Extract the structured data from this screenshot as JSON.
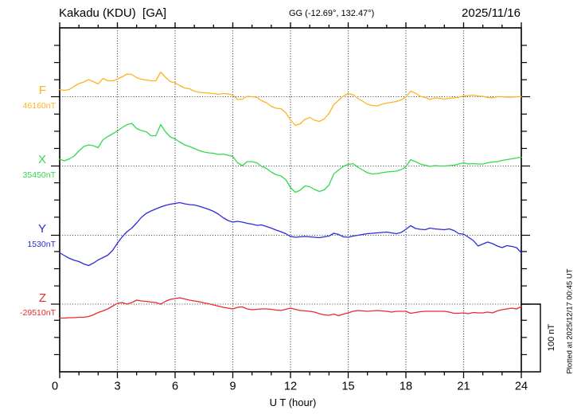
{
  "header": {
    "station_title": "Kakadu (KDU)  [GA]",
    "coordinates": "GG (-12.69°, 132.47°)",
    "date": "2025/11/16"
  },
  "annotations": {
    "scale_bar_label": "100 nT",
    "plotted_at": "Plotted at 2025/12/17 00:45 UT"
  },
  "chart_data": {
    "type": "line",
    "title": "Kakadu (KDU) [GA] magnetogram 2025/11/16",
    "xlabel": "U T (hour)",
    "x_range_hours": [
      0,
      24
    ],
    "x_ticks": [
      0,
      3,
      6,
      9,
      12,
      15,
      18,
      21,
      24
    ],
    "sample_interval_hours": 0.25,
    "scale_bar_nT": 100,
    "grid": {
      "vertical_dotted_every_hours": 3,
      "horizontal_dotted_at": "each series baseline",
      "minor_tick_nT": 25,
      "minor_tick_hours": 1
    },
    "series": [
      {
        "name": "F",
        "baseline_label": "46160nT",
        "baseline_nT": 46160,
        "color": "#FFB321",
        "offsets_nT": [
          10.6,
          9.4,
          10.6,
          15.3,
          19.4,
          21.8,
          25.3,
          22.4,
          18.8,
          27.1,
          23.5,
          23.5,
          25.9,
          29.4,
          33.5,
          32.9,
          28.2,
          25.9,
          24.7,
          23.5,
          23.5,
          36.5,
          28.8,
          22.4,
          20.6,
          16.5,
          12.9,
          11.8,
          8.2,
          6.5,
          5.9,
          5.3,
          4.7,
          3.5,
          4.7,
          4.1,
          2.4,
          -4.1,
          -3.5,
          0.6,
          0,
          -1.2,
          -5.9,
          -8.8,
          -14.1,
          -17.1,
          -17.6,
          -23.5,
          -34.1,
          -42.4,
          -40,
          -33.5,
          -30.6,
          -34.7,
          -36.5,
          -32.9,
          -24.7,
          -11.8,
          -5.3,
          1.2,
          4.7,
          2.9,
          -2.4,
          -6.5,
          -11.2,
          -12.9,
          -13.5,
          -11.2,
          -9.4,
          -8.2,
          -7.1,
          -4.7,
          -0.6,
          8.2,
          5.3,
          0.6,
          -1.2,
          -4.1,
          -1.8,
          -2.4,
          -3.5,
          -2.4,
          -1.8,
          -0.6,
          1.2,
          1.8,
          2.4,
          1.2,
          0.6,
          -1.2,
          -1.8,
          0,
          0,
          -0.6,
          -0.6,
          0,
          0
        ]
      },
      {
        "name": "X",
        "baseline_label": "35450nT",
        "baseline_nT": 35450,
        "color": "#33D94F",
        "offsets_nT": [
          10,
          7.6,
          10.6,
          14.7,
          22.4,
          28.8,
          31.2,
          30,
          27.1,
          38.8,
          43.5,
          47.6,
          51.8,
          57,
          61.2,
          62.9,
          55.3,
          52.3,
          50.6,
          44.7,
          44.7,
          61.2,
          50.6,
          42.9,
          40,
          35.3,
          31.2,
          28.8,
          25.9,
          22.9,
          20.6,
          19.4,
          18.8,
          17.1,
          17.6,
          15.9,
          14.1,
          4.7,
          0.6,
          6.5,
          6.5,
          4.7,
          -0.6,
          -3.5,
          -8.8,
          -12.9,
          -14.7,
          -20,
          -31.8,
          -38.8,
          -35.9,
          -29.4,
          -30.6,
          -34.7,
          -37.6,
          -35.3,
          -28.2,
          -11.8,
          -5.9,
          -0.6,
          2.4,
          3.5,
          -1.8,
          -5.9,
          -10,
          -11.8,
          -11.2,
          -10,
          -8.8,
          -8.2,
          -7.6,
          -5.3,
          -1.2,
          9.4,
          6.5,
          2.9,
          1.2,
          -0.6,
          0.6,
          0,
          0,
          0.6,
          1.2,
          2.9,
          4.7,
          2.9,
          3.5,
          2.9,
          2.9,
          4.7,
          5.9,
          6.5,
          8.2,
          9.4,
          10.6,
          11.8,
          12.9
        ]
      },
      {
        "name": "Y",
        "baseline_label": "1530nT",
        "baseline_nT": 1530,
        "color": "#2B2BDB",
        "offsets_nT": [
          -25.9,
          -30,
          -34.1,
          -37,
          -38.8,
          -42.4,
          -44.7,
          -41.2,
          -36.5,
          -32.9,
          -29.4,
          -22.4,
          -11.8,
          -2.4,
          5.3,
          10.6,
          18.2,
          26.5,
          32.4,
          35.9,
          38.8,
          41.8,
          44.1,
          45.9,
          47.1,
          48.2,
          46.5,
          45.3,
          44.7,
          42.9,
          40.6,
          38.2,
          35.3,
          31.2,
          25.9,
          21.8,
          19.4,
          20.6,
          19.4,
          17.6,
          16.5,
          14.7,
          15.3,
          12.9,
          10.6,
          7.6,
          5.3,
          2.4,
          -1.8,
          -2.9,
          -2.4,
          -1.8,
          -2.4,
          -2.9,
          -3.5,
          -2.4,
          -1.2,
          2.9,
          1.2,
          -2.4,
          -2.9,
          -1.2,
          0,
          1.2,
          2.4,
          2.9,
          3.5,
          4.1,
          4.7,
          3.5,
          2.4,
          4.1,
          8.8,
          14.1,
          10,
          8.8,
          8.2,
          10.6,
          9.4,
          8.8,
          8.2,
          9.4,
          7.1,
          2.4,
          1.8,
          -2.9,
          -7.6,
          -15.9,
          -12.9,
          -10,
          -12.4,
          -15.9,
          -18.2,
          -15.3,
          -16.5,
          -18.2,
          -25.9
        ]
      },
      {
        "name": "Z",
        "baseline_label": "-29510nT",
        "baseline_nT": -29510,
        "color": "#E92B2B",
        "offsets_nT": [
          -20.6,
          -20.6,
          -20,
          -20,
          -19.4,
          -19.4,
          -18.2,
          -15.9,
          -12.4,
          -10,
          -7.1,
          -2.9,
          1.2,
          2.4,
          0,
          2.4,
          5.9,
          4.7,
          4.1,
          2.9,
          2.4,
          0,
          4.1,
          7.1,
          8.2,
          9.4,
          7.6,
          5.9,
          4.7,
          3.5,
          1.8,
          0.6,
          -1.2,
          -2.9,
          -4.7,
          -5.9,
          -7.1,
          -4.7,
          -4.1,
          -7.1,
          -8.2,
          -7.6,
          -7.1,
          -7.1,
          -7.6,
          -8.8,
          -9.4,
          -7.6,
          -5.9,
          -7.6,
          -9.4,
          -10,
          -10.6,
          -11.8,
          -14.1,
          -15.9,
          -16.5,
          -14.7,
          -17.1,
          -14.7,
          -12.9,
          -10.6,
          -9.4,
          -10,
          -10.6,
          -10,
          -9.4,
          -10,
          -10.6,
          -11.8,
          -10.6,
          -10.6,
          -10.6,
          -13.5,
          -12.4,
          -11.2,
          -10.6,
          -10.6,
          -10.6,
          -10.6,
          -10.6,
          -11.8,
          -13.5,
          -13.5,
          -12.9,
          -14.1,
          -12.4,
          -12.9,
          -12.9,
          -11.8,
          -12.9,
          -10,
          -8.2,
          -7.1,
          -5.9,
          -7.1,
          -3.5
        ]
      }
    ]
  }
}
